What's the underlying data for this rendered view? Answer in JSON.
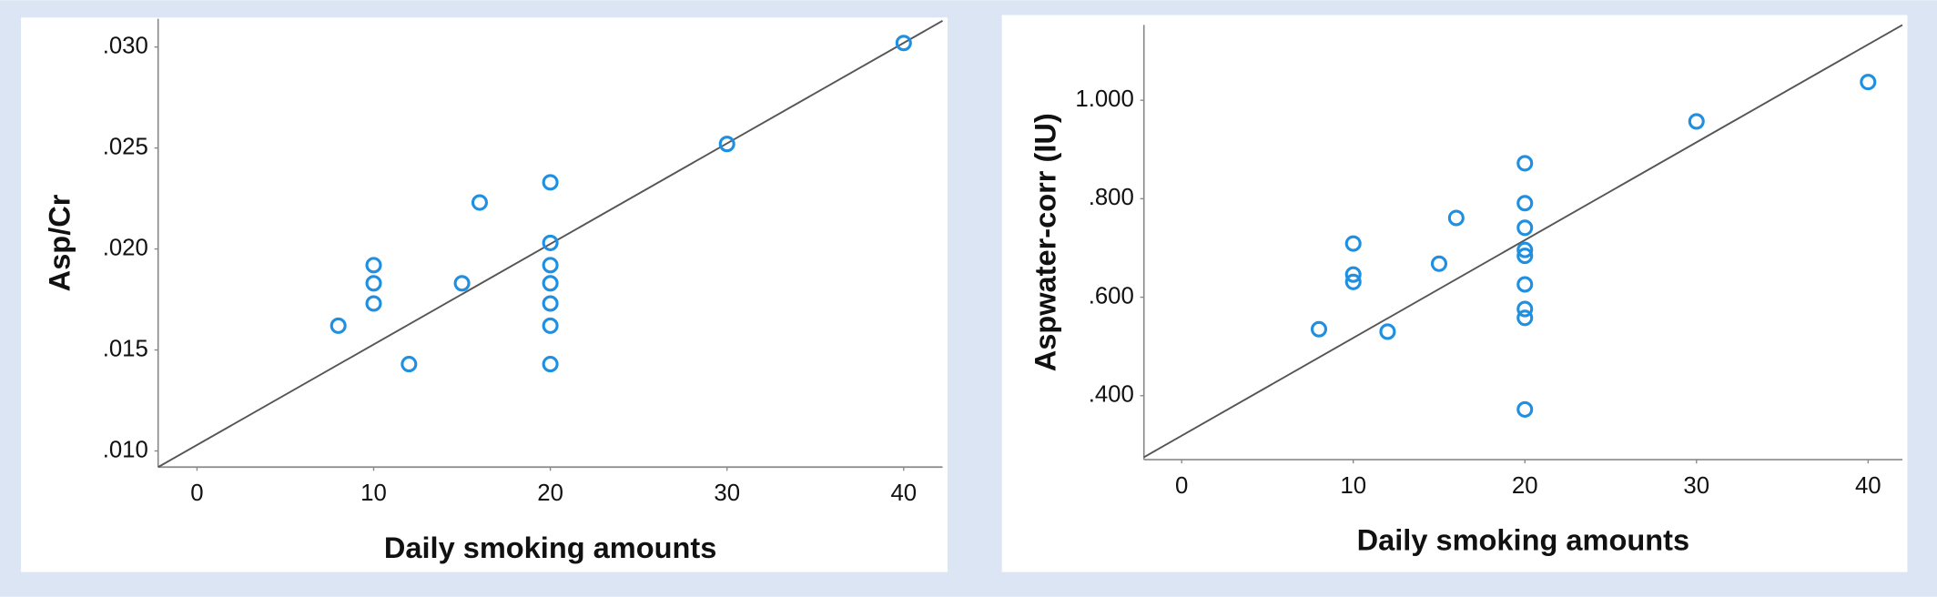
{
  "chart_data": [
    {
      "type": "scatter",
      "x_label": "Daily smoking amounts",
      "y_label": "Asp/Cr",
      "color": "#1e8fe1",
      "x": [
        8,
        10,
        10,
        10,
        12,
        15,
        16,
        20,
        20,
        20,
        20,
        20,
        20,
        20,
        30,
        40
      ],
      "y": [
        0.0162,
        0.0192,
        0.0183,
        0.0173,
        0.0143,
        0.0183,
        0.0223,
        0.0233,
        0.0203,
        0.0192,
        0.0183,
        0.0173,
        0.0162,
        0.0143,
        0.0252,
        0.0302
      ],
      "fit_line": {
        "x": [
          -2.2,
          42.2
        ],
        "y": [
          0.0092,
          0.0313
        ],
        "color": "#555555"
      },
      "xlim": [
        -2.2,
        42.2
      ],
      "ylim": [
        0.0092,
        0.0314
      ],
      "xticks": [
        0,
        10,
        20,
        30,
        40
      ],
      "yticks": [
        {
          "value": 0.01,
          "label": ".010"
        },
        {
          "value": 0.015,
          "label": ".015"
        },
        {
          "value": 0.02,
          "label": ".020"
        },
        {
          "value": 0.025,
          "label": ".025"
        },
        {
          "value": 0.03,
          "label": ".030"
        }
      ]
    },
    {
      "type": "scatter",
      "x_label": "Daily smoking amounts",
      "y_label": "Aspwater-corr (IU)",
      "color": "#1e8fe1",
      "x": [
        8,
        10,
        10,
        10,
        12,
        15,
        16,
        20,
        20,
        20,
        20,
        20,
        20,
        20,
        20,
        20,
        30,
        40
      ],
      "y": [
        0.535,
        0.709,
        0.646,
        0.631,
        0.53,
        0.668,
        0.761,
        0.872,
        0.791,
        0.741,
        0.696,
        0.684,
        0.626,
        0.576,
        0.558,
        0.372,
        0.957,
        1.037
      ],
      "fit_line": {
        "x": [
          -2.2,
          42
        ],
        "y": [
          0.275,
          1.153
        ],
        "color": "#555555"
      },
      "xlim": [
        -2.2,
        42
      ],
      "ylim": [
        0.27,
        1.153
      ],
      "xticks": [
        0,
        10,
        20,
        30,
        40
      ],
      "yticks": [
        {
          "value": 0.4,
          "label": ".400"
        },
        {
          "value": 0.6,
          "label": ".600"
        },
        {
          "value": 0.8,
          "label": ".800"
        },
        {
          "value": 1,
          "label": "1.000"
        }
      ]
    }
  ]
}
